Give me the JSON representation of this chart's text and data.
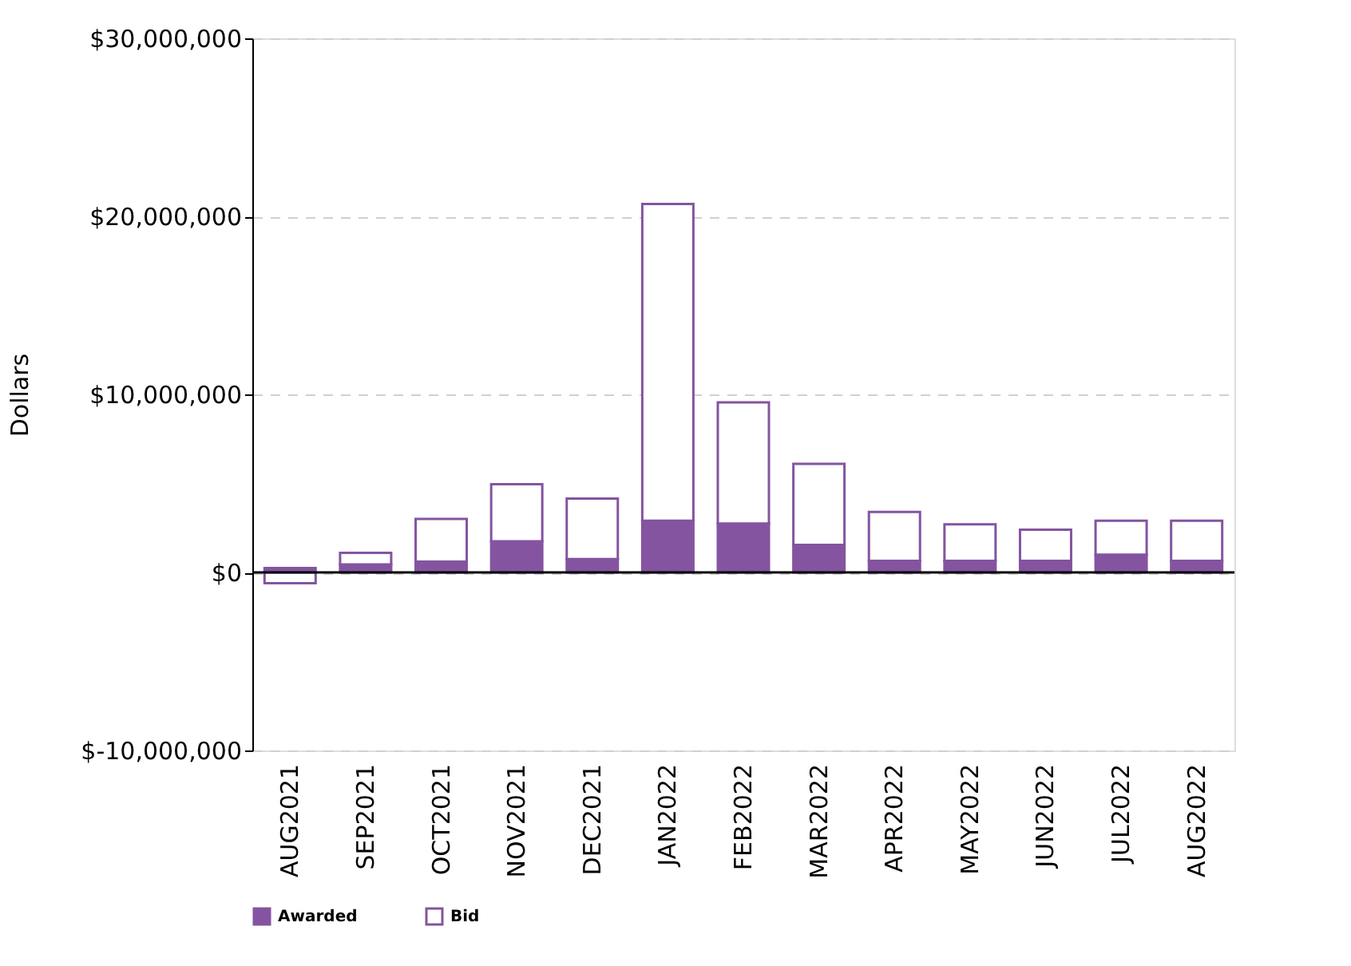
{
  "chart_data": {
    "type": "bar",
    "stacked": true,
    "ylabel": "Dollars",
    "categories": [
      "AUG2021",
      "SEP2021",
      "OCT2021",
      "NOV2021",
      "DEC2021",
      "JAN2022",
      "FEB2022",
      "MAR2022",
      "APR2022",
      "MAY2022",
      "JUN2022",
      "JUL2022",
      "AUG2022"
    ],
    "series": [
      {
        "name": "Awarded",
        "color": "#8454a0",
        "values": [
          250000,
          450000,
          600000,
          1750000,
          750000,
          2900000,
          2750000,
          1550000,
          650000,
          650000,
          650000,
          1000000,
          650000
        ]
      },
      {
        "name": "Bid",
        "color": "#ffffff",
        "values": [
          -600000,
          650000,
          2400000,
          3200000,
          3400000,
          17800000,
          6800000,
          4550000,
          2750000,
          2050000,
          1750000,
          1900000,
          2250000
        ]
      }
    ],
    "ylim": [
      -10000000,
      30000000
    ],
    "yticks": [
      {
        "value": -10000000,
        "label": "$-10,000,000"
      },
      {
        "value": 0,
        "label": "$0"
      },
      {
        "value": 10000000,
        "label": "$10,000,000"
      },
      {
        "value": 20000000,
        "label": "$20,000,000"
      },
      {
        "value": 30000000,
        "label": "$30,000,000"
      }
    ],
    "ref_lines": [
      {
        "axis": "y",
        "value": 0,
        "color": "#000000"
      }
    ],
    "grid": "y",
    "legend": "bottom"
  }
}
